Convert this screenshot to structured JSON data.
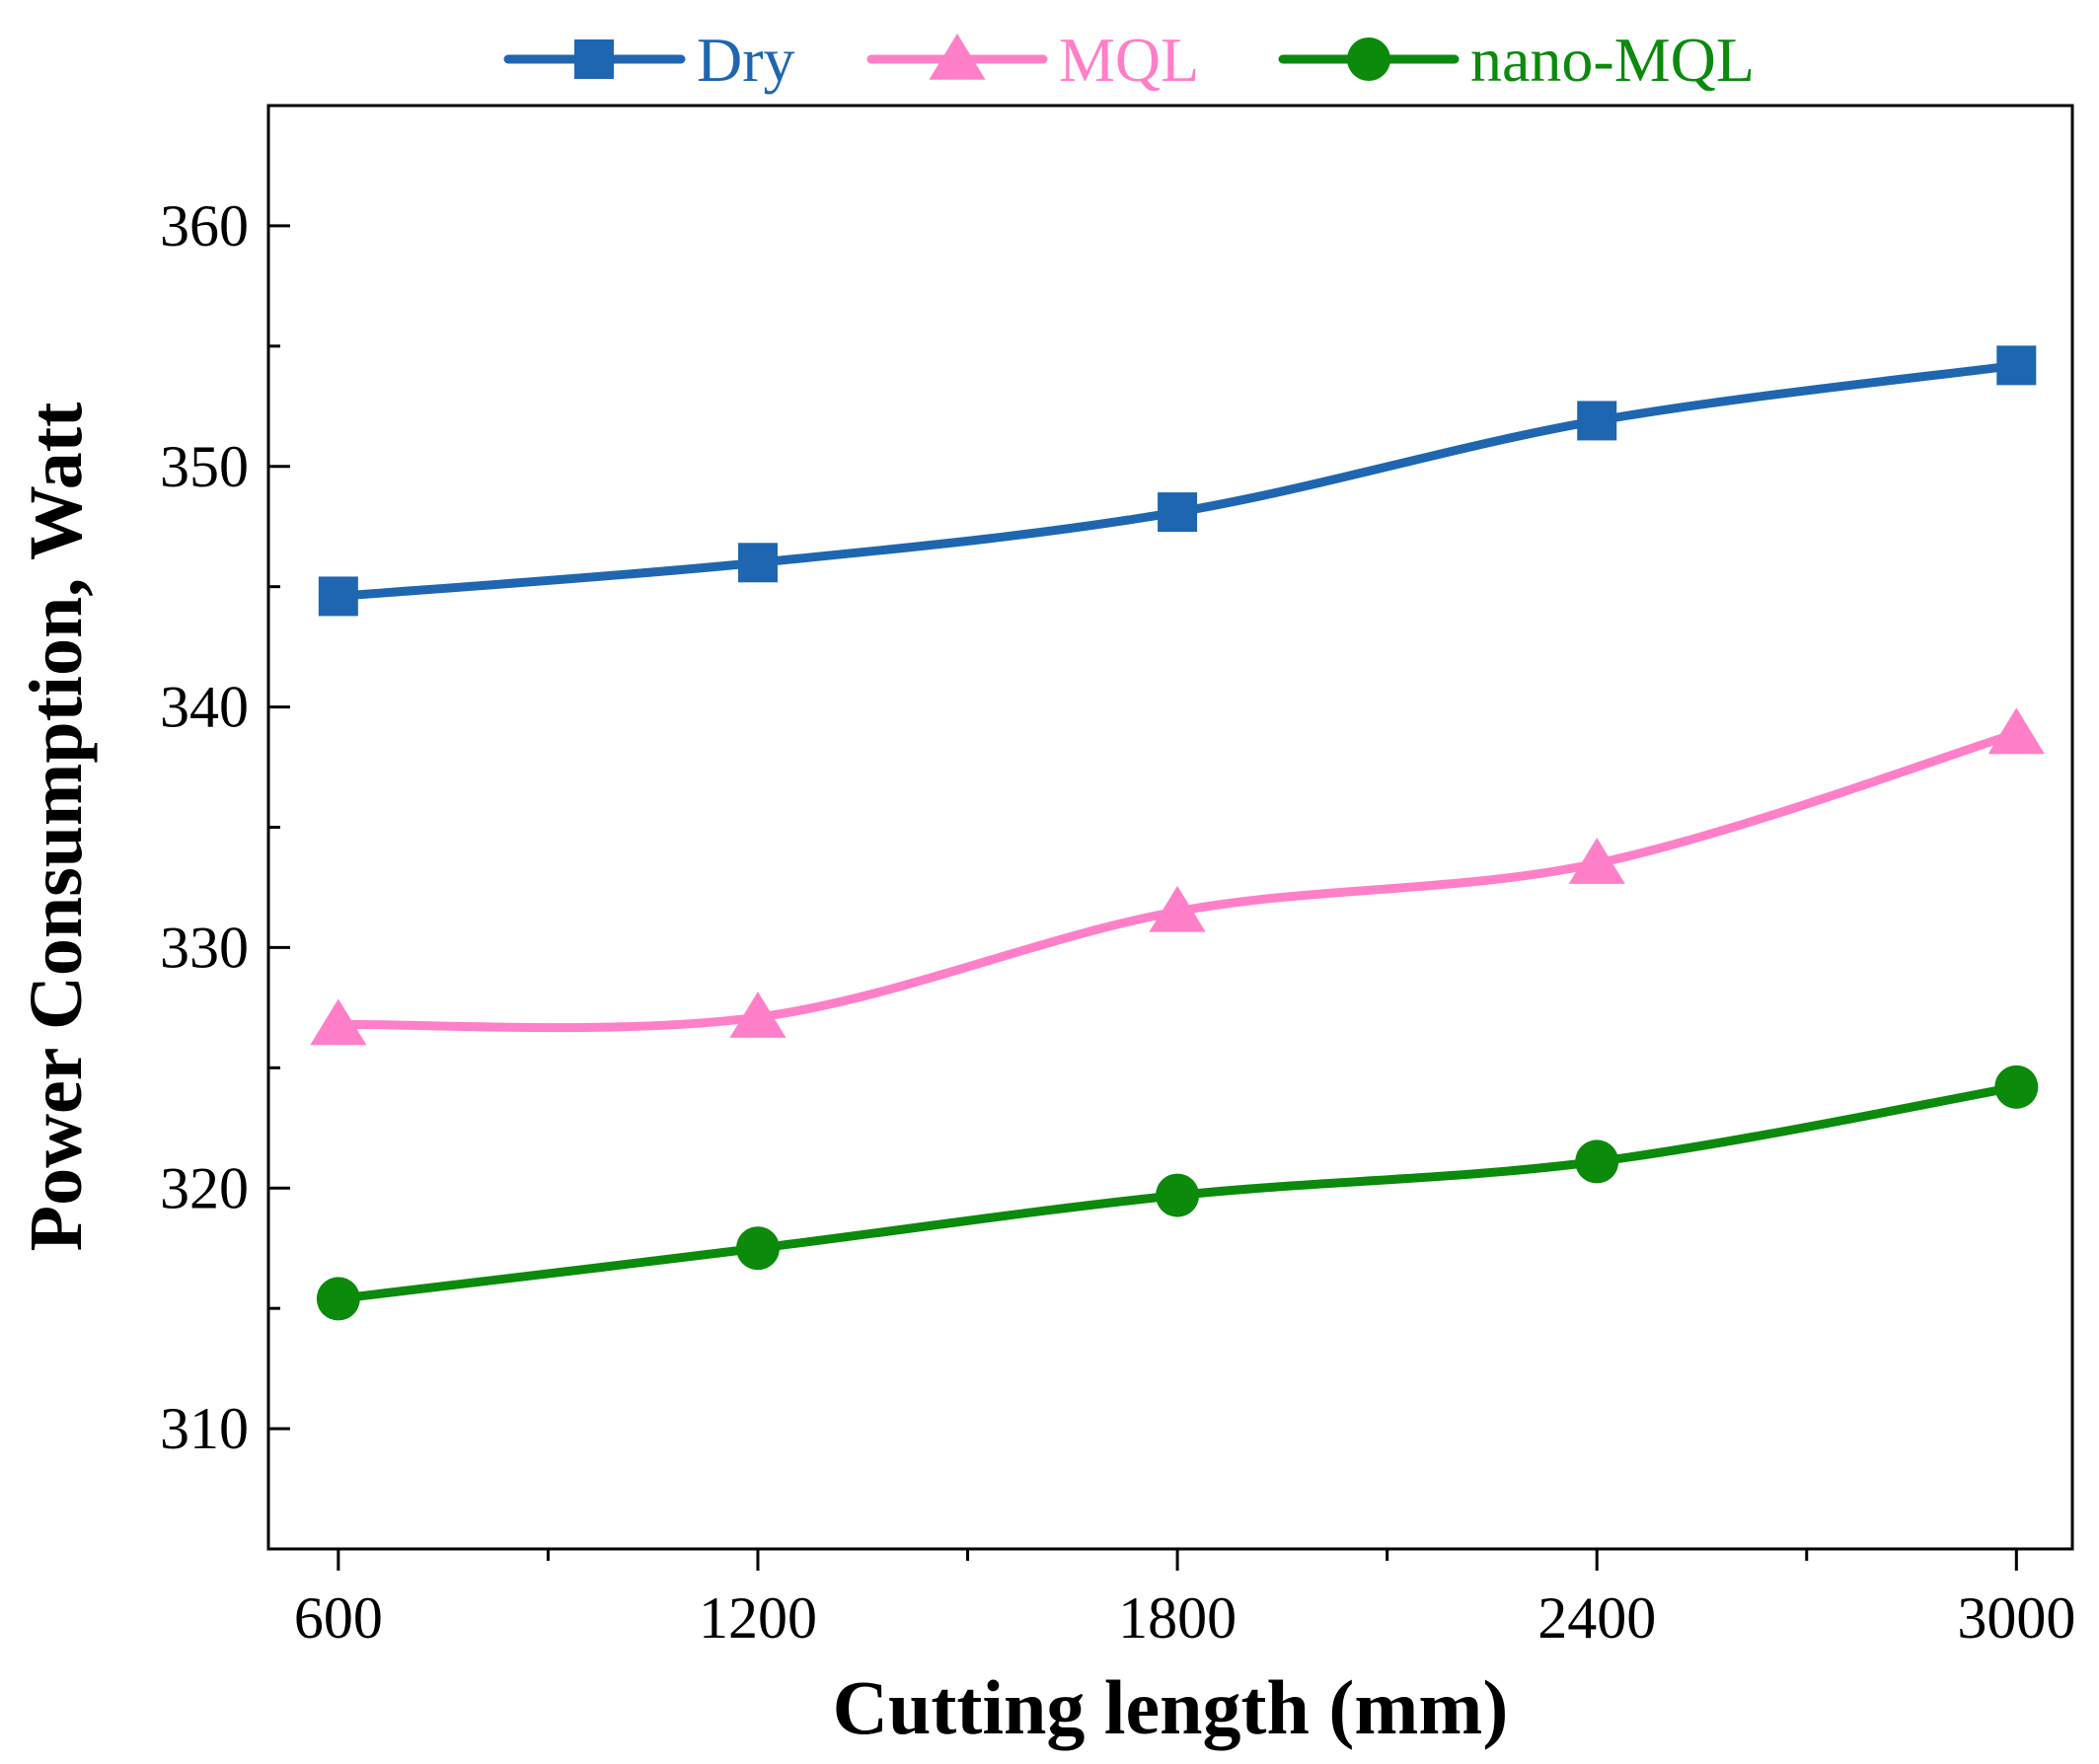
{
  "chart_data": {
    "type": "line",
    "title": "",
    "xlabel": "Cutting length (mm)",
    "ylabel": "Power Consumption, Watt",
    "x": [
      600,
      1200,
      1800,
      2400,
      3000
    ],
    "xticks": [
      600,
      1200,
      1800,
      2400,
      3000
    ],
    "xtick_labels": [
      "600",
      "1200",
      "1800",
      "2400",
      "3000"
    ],
    "xlim": [
      500,
      3080
    ],
    "yticks": [
      310,
      320,
      330,
      340,
      350,
      360
    ],
    "ytick_labels": [
      "310",
      "320",
      "330",
      "340",
      "350",
      "360"
    ],
    "ylim": [
      305,
      365
    ],
    "grid": false,
    "legend_position": "top",
    "series": [
      {
        "name": "Dry",
        "marker": "square",
        "color": "#1f66b0",
        "values": [
          344.6,
          346.0,
          348.1,
          351.9,
          354.2
        ]
      },
      {
        "name": "MQL",
        "marker": "triangle",
        "color": "#ff7fc8",
        "values": [
          326.8,
          327.1,
          331.5,
          333.5,
          338.9
        ]
      },
      {
        "name": "nano-MQL",
        "marker": "circle",
        "color": "#0b8a0b",
        "values": [
          315.4,
          317.5,
          319.7,
          321.1,
          324.2
        ]
      }
    ]
  }
}
